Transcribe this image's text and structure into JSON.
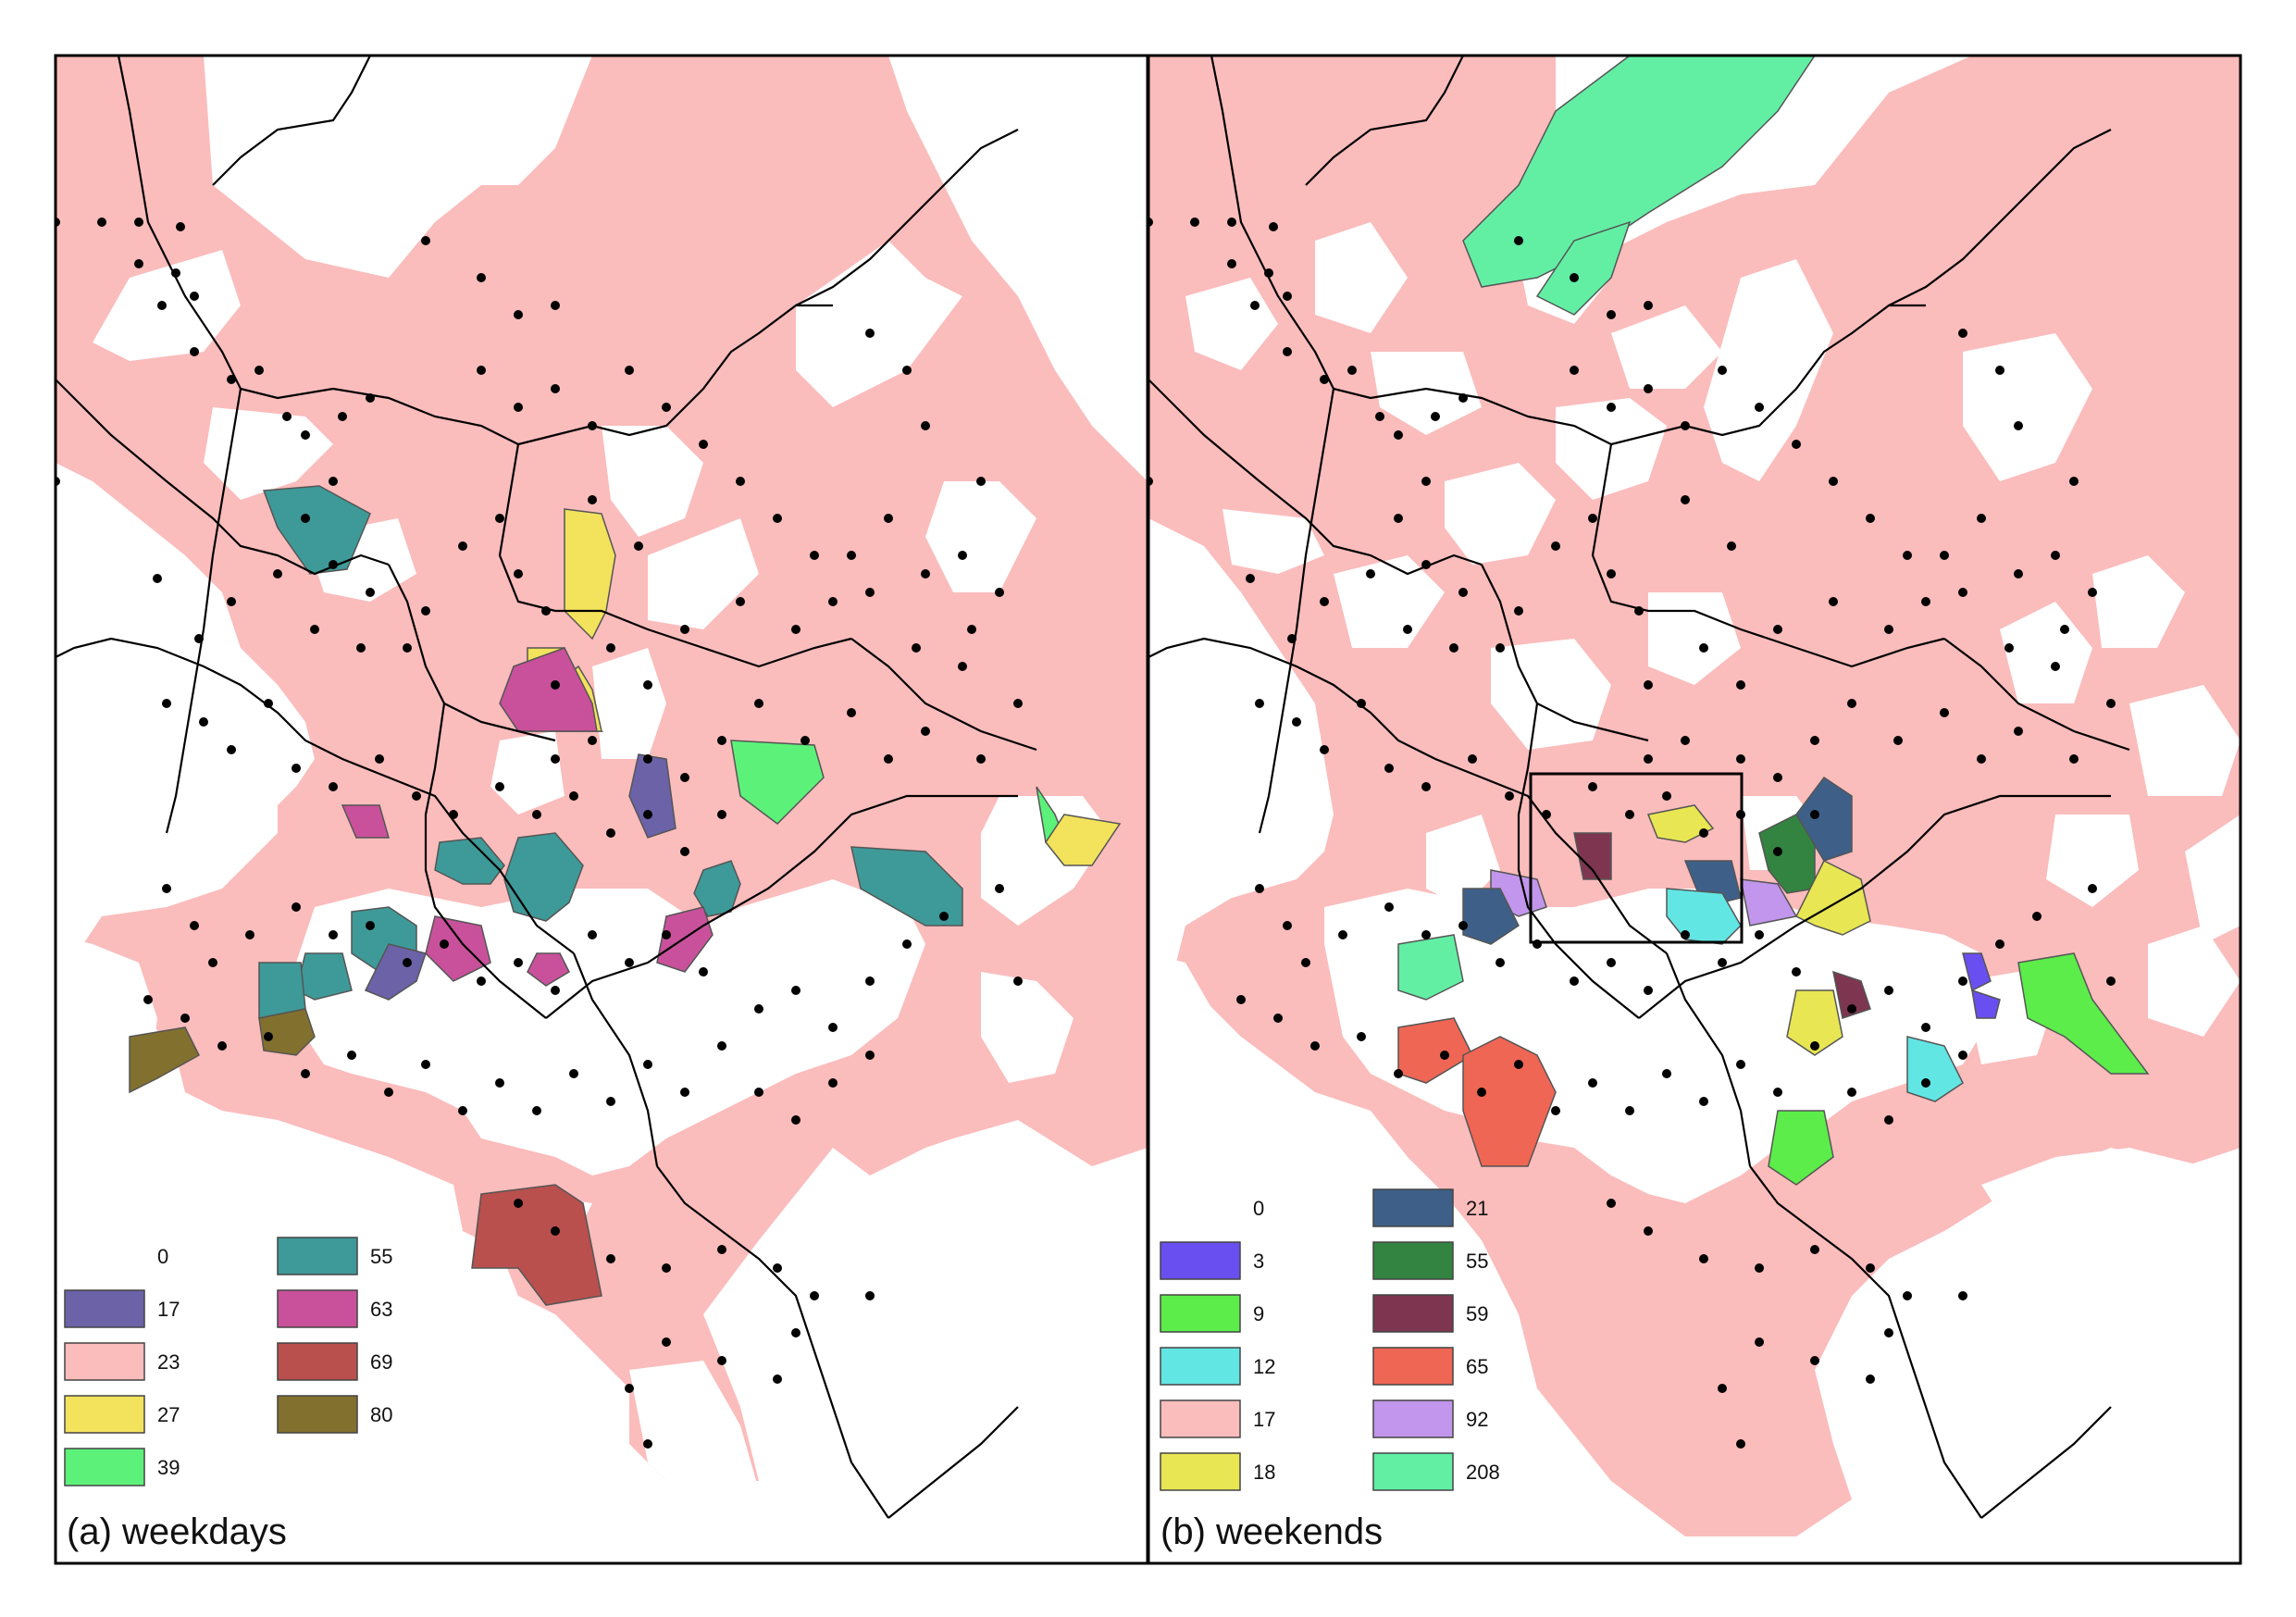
{
  "panels": [
    {
      "id": "weekdays",
      "title": "(a) weekdays",
      "legend": [
        {
          "label": "0",
          "color": "#ffffff"
        },
        {
          "label": "17",
          "color": "#6b62a8"
        },
        {
          "label": "23",
          "color": "#fbbcbc"
        },
        {
          "label": "27",
          "color": "#f3e25c"
        },
        {
          "label": "39",
          "color": "#5cf27a"
        },
        {
          "label": "55",
          "color": "#3e9a98"
        },
        {
          "label": "63",
          "color": "#c9519b"
        },
        {
          "label": "69",
          "color": "#b9504e"
        },
        {
          "label": "80",
          "color": "#82702f"
        }
      ]
    },
    {
      "id": "weekends",
      "title": "(b) weekends",
      "legend": [
        {
          "label": "0",
          "color": "#ffffff"
        },
        {
          "label": "3",
          "color": "#6a4ff0"
        },
        {
          "label": "9",
          "color": "#5ced4a"
        },
        {
          "label": "12",
          "color": "#62e6e4"
        },
        {
          "label": "17",
          "color": "#fbbcbc"
        },
        {
          "label": "18",
          "color": "#e8e652"
        },
        {
          "label": "21",
          "color": "#3e6088"
        },
        {
          "label": "55",
          "color": "#338440"
        },
        {
          "label": "59",
          "color": "#7e3650"
        },
        {
          "label": "65",
          "color": "#ef6654"
        },
        {
          "label": "92",
          "color": "#c296ec"
        },
        {
          "label": "208",
          "color": "#62efa4"
        }
      ]
    }
  ]
}
